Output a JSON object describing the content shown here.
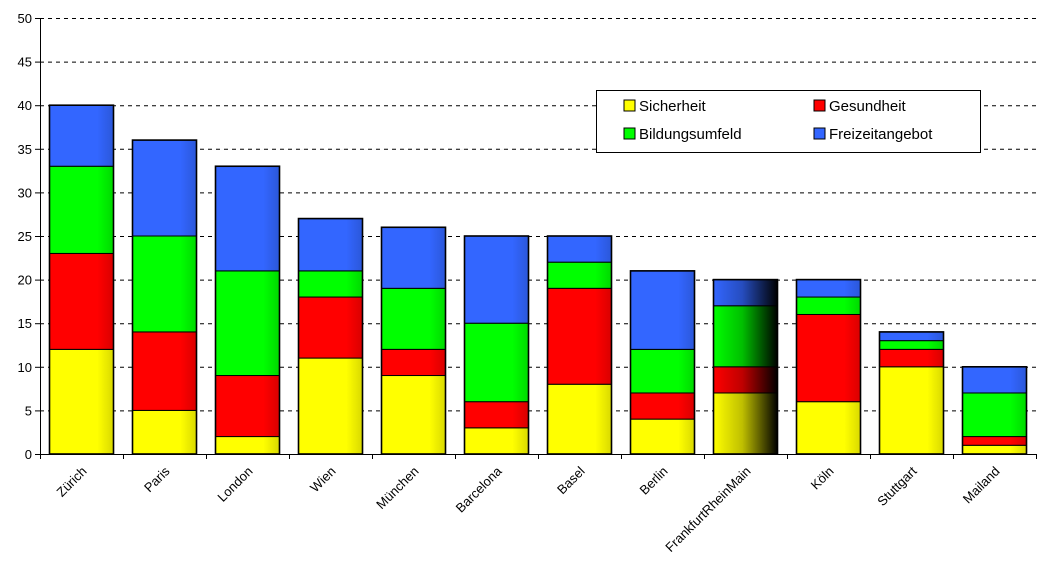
{
  "chart_data": {
    "type": "bar",
    "stacked": true,
    "title": "",
    "xlabel": "",
    "ylabel": "",
    "ylim": [
      0,
      50
    ],
    "yticks": [
      0,
      5,
      10,
      15,
      20,
      25,
      30,
      35,
      40,
      45,
      50
    ],
    "grid": true,
    "legend_position": "top-right",
    "categories": [
      "Zürich",
      "Paris",
      "London",
      "Wien",
      "München",
      "Barcelona",
      "Basel",
      "Berlin",
      "FrankfurtRheinMain",
      "Köln",
      "Stuttgart",
      "Mailand"
    ],
    "highlight_category": "FrankfurtRheinMain",
    "series": [
      {
        "name": "Sicherheit",
        "color": "#ffff00",
        "values": [
          12,
          5,
          2,
          11,
          9,
          3,
          8,
          4,
          7,
          6,
          10,
          1
        ]
      },
      {
        "name": "Gesundheit",
        "color": "#ff0000",
        "values": [
          11,
          9,
          7,
          7,
          3,
          3,
          11,
          3,
          3,
          10,
          2,
          1
        ]
      },
      {
        "name": "Bildungsumfeld",
        "color": "#00ff00",
        "values": [
          10,
          11,
          12,
          3,
          7,
          9,
          3,
          5,
          7,
          2,
          1,
          5
        ]
      },
      {
        "name": "Freizeitangebot",
        "color": "#3366ff",
        "values": [
          7,
          11,
          12,
          6,
          7,
          10,
          3,
          9,
          3,
          2,
          1,
          3
        ]
      }
    ]
  }
}
